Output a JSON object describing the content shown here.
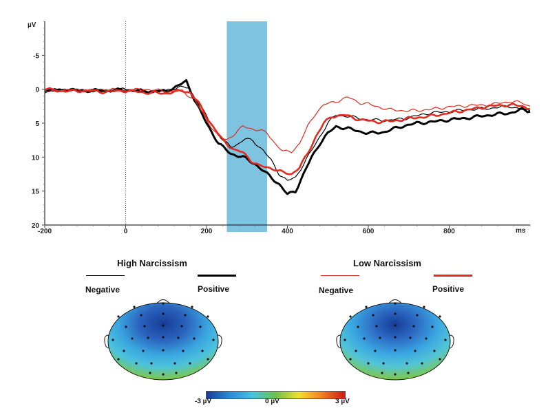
{
  "chart_data": {
    "type": "line",
    "y_unit": "µV",
    "x_unit": "ms",
    "y_inverted": true,
    "xlim": [
      -200,
      1000
    ],
    "ylim": [
      -10,
      20
    ],
    "x_ticks": [
      -200,
      0,
      200,
      400,
      600,
      800
    ],
    "y_ticks": [
      -5,
      0,
      5,
      10,
      15,
      20
    ],
    "grid": false,
    "highlight_window_ms": [
      250,
      350
    ],
    "highlight_color": "#7ec3e0",
    "series": [
      {
        "name": "High Narcissism Negative",
        "color": "#000000",
        "width": 1.2,
        "points": [
          [
            -200,
            0.2
          ],
          [
            -150,
            0.0
          ],
          [
            -100,
            0.3
          ],
          [
            -50,
            0.2
          ],
          [
            0,
            0.0
          ],
          [
            50,
            0.4
          ],
          [
            100,
            0.2
          ],
          [
            130,
            -0.3
          ],
          [
            155,
            -0.2
          ],
          [
            180,
            2.0
          ],
          [
            210,
            5.0
          ],
          [
            240,
            7.5
          ],
          [
            260,
            8.5
          ],
          [
            280,
            8.0
          ],
          [
            295,
            7.3
          ],
          [
            315,
            7.6
          ],
          [
            340,
            9.0
          ],
          [
            360,
            10.5
          ],
          [
            380,
            12.5
          ],
          [
            400,
            13.5
          ],
          [
            420,
            13.0
          ],
          [
            440,
            11.0
          ],
          [
            460,
            9.0
          ],
          [
            480,
            7.0
          ],
          [
            500,
            5.0
          ],
          [
            520,
            3.8
          ],
          [
            550,
            4.0
          ],
          [
            600,
            4.5
          ],
          [
            650,
            4.6
          ],
          [
            700,
            4.2
          ],
          [
            750,
            3.5
          ],
          [
            800,
            3.3
          ],
          [
            850,
            3.0
          ],
          [
            900,
            2.8
          ],
          [
            950,
            2.5
          ],
          [
            980,
            3.0
          ],
          [
            1000,
            3.2
          ]
        ]
      },
      {
        "name": "High Narcissism Positive",
        "color": "#000000",
        "width": 3.0,
        "points": [
          [
            -200,
            0.3
          ],
          [
            -150,
            0.1
          ],
          [
            -100,
            0.2
          ],
          [
            -50,
            0.2
          ],
          [
            0,
            0.1
          ],
          [
            50,
            0.3
          ],
          [
            100,
            0.3
          ],
          [
            130,
            -0.5
          ],
          [
            150,
            -1.2
          ],
          [
            170,
            1.5
          ],
          [
            200,
            5.0
          ],
          [
            230,
            8.0
          ],
          [
            260,
            9.5
          ],
          [
            290,
            10.0
          ],
          [
            320,
            11.0
          ],
          [
            350,
            12.5
          ],
          [
            380,
            14.0
          ],
          [
            400,
            15.5
          ],
          [
            420,
            15.0
          ],
          [
            440,
            12.5
          ],
          [
            460,
            10.0
          ],
          [
            480,
            8.0
          ],
          [
            500,
            6.5
          ],
          [
            520,
            5.5
          ],
          [
            550,
            5.8
          ],
          [
            600,
            6.5
          ],
          [
            640,
            6.3
          ],
          [
            680,
            5.5
          ],
          [
            720,
            5.0
          ],
          [
            760,
            4.8
          ],
          [
            800,
            4.5
          ],
          [
            850,
            4.2
          ],
          [
            900,
            3.8
          ],
          [
            950,
            3.5
          ],
          [
            980,
            3.0
          ],
          [
            1000,
            3.3
          ]
        ]
      },
      {
        "name": "Low Narcissism Negative",
        "color": "#e12b1f",
        "width": 1.2,
        "points": [
          [
            -200,
            0.4
          ],
          [
            -150,
            0.1
          ],
          [
            -100,
            0.2
          ],
          [
            -50,
            0.0
          ],
          [
            0,
            0.2
          ],
          [
            50,
            0.0
          ],
          [
            100,
            0.3
          ],
          [
            140,
            0.3
          ],
          [
            170,
            1.5
          ],
          [
            200,
            4.5
          ],
          [
            230,
            7.0
          ],
          [
            250,
            7.5
          ],
          [
            270,
            6.5
          ],
          [
            290,
            5.5
          ],
          [
            310,
            5.8
          ],
          [
            330,
            6.0
          ],
          [
            350,
            6.5
          ],
          [
            370,
            8.0
          ],
          [
            390,
            9.2
          ],
          [
            410,
            9.2
          ],
          [
            430,
            8.0
          ],
          [
            450,
            5.5
          ],
          [
            470,
            3.5
          ],
          [
            490,
            2.3
          ],
          [
            520,
            1.8
          ],
          [
            550,
            1.2
          ],
          [
            580,
            2.0
          ],
          [
            600,
            2.2
          ],
          [
            650,
            3.0
          ],
          [
            700,
            3.2
          ],
          [
            750,
            3.0
          ],
          [
            800,
            2.6
          ],
          [
            850,
            2.4
          ],
          [
            900,
            2.3
          ],
          [
            950,
            1.8
          ],
          [
            980,
            2.0
          ],
          [
            1000,
            2.5
          ]
        ]
      },
      {
        "name": "Low Narcissism Positive",
        "color": "#e12b1f",
        "width": 2.6,
        "points": [
          [
            -200,
            0.0
          ],
          [
            -150,
            0.3
          ],
          [
            -100,
            0.2
          ],
          [
            -50,
            0.4
          ],
          [
            0,
            0.2
          ],
          [
            50,
            0.5
          ],
          [
            100,
            0.6
          ],
          [
            140,
            0.2
          ],
          [
            160,
            0.5
          ],
          [
            180,
            2.0
          ],
          [
            210,
            5.0
          ],
          [
            240,
            7.5
          ],
          [
            270,
            9.0
          ],
          [
            290,
            9.3
          ],
          [
            310,
            10.5
          ],
          [
            330,
            11.3
          ],
          [
            350,
            11.5
          ],
          [
            370,
            11.8
          ],
          [
            390,
            12.3
          ],
          [
            410,
            12.5
          ],
          [
            430,
            11.5
          ],
          [
            450,
            9.5
          ],
          [
            470,
            7.0
          ],
          [
            490,
            5.0
          ],
          [
            510,
            4.0
          ],
          [
            540,
            3.8
          ],
          [
            580,
            4.5
          ],
          [
            620,
            4.8
          ],
          [
            660,
            4.7
          ],
          [
            700,
            4.3
          ],
          [
            750,
            4.0
          ],
          [
            800,
            3.5
          ],
          [
            850,
            3.0
          ],
          [
            900,
            2.5
          ],
          [
            950,
            2.3
          ],
          [
            980,
            2.5
          ],
          [
            1000,
            2.9
          ]
        ]
      }
    ]
  },
  "groups": [
    {
      "title": "High Narcissism",
      "negative_label": "Negative",
      "positive_label": "Positive"
    },
    {
      "title": "Low Narcissism",
      "negative_label": "Negative",
      "positive_label": "Positive"
    }
  ],
  "colorbar": {
    "min_label": "-3 µV",
    "mid_label": "0 µV",
    "max_label": "3 µV",
    "colors": [
      "#1a3a9a",
      "#2a8ad8",
      "#44c4e0",
      "#6ec24a",
      "#f0e030",
      "#f08020",
      "#d01818"
    ]
  },
  "topo_colors": {
    "negative_center": "#1f4fa8",
    "mid": "#3aa6e0",
    "edge_green": "#7cc84a"
  }
}
